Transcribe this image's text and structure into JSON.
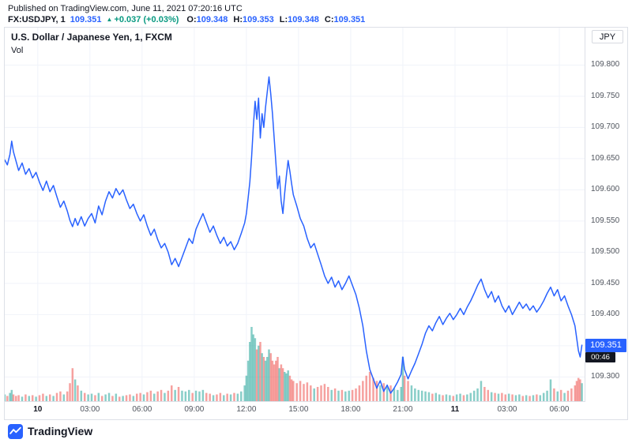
{
  "meta": {
    "published_line": "Published on TradingView.com, June 11, 2021 07:20:16 UTC"
  },
  "symbol_bar": {
    "symbol": "FX:USDJPY, 1",
    "last_price": "109.351",
    "change_arrow": "▲",
    "change_text": "+0.037 (+0.03%)",
    "ohlc": [
      {
        "label": "O:",
        "value": "109.348"
      },
      {
        "label": "H:",
        "value": "109.353"
      },
      {
        "label": "L:",
        "value": "109.348"
      },
      {
        "label": "C:",
        "value": "109.351"
      }
    ]
  },
  "chart": {
    "legend_title": "U.S. Dollar / Japanese Yen, 1, FXCM",
    "legend_vol": "Vol",
    "currency_button": "JPY",
    "price_badge": "109.351",
    "countdown": "00:46",
    "colors": {
      "line": "#2962ff",
      "up": "#089981",
      "down": "#f23645",
      "vol_up": "#26a69a",
      "vol_down": "#ef5350",
      "grid": "#f0f3fa",
      "badge_bg": "#2962ff",
      "countdown_bg": "#131722",
      "axis_text": "#50555e"
    }
  },
  "chart_data": {
    "type": "line",
    "title": "U.S. Dollar / Japanese Yen, 1, FXCM",
    "symbol": "FX:USDJPY",
    "interval": "1",
    "exchange": "FXCM",
    "ylabel": "JPY",
    "grid": true,
    "legend_position": "top-left",
    "x_unit_note": "hours since 2021-06-10 00:00 UTC; points are [t, price, relative_volume]",
    "xlim": [
      -1.9,
      31.5
    ],
    "ylim": [
      109.26,
      109.86
    ],
    "x_ticks": [
      {
        "t": 0,
        "label": "10",
        "major": true
      },
      {
        "t": 3,
        "label": "03:00",
        "major": false
      },
      {
        "t": 6,
        "label": "06:00",
        "major": false
      },
      {
        "t": 9,
        "label": "09:00",
        "major": false
      },
      {
        "t": 12,
        "label": "12:00",
        "major": false
      },
      {
        "t": 15,
        "label": "15:00",
        "major": false
      },
      {
        "t": 18,
        "label": "18:00",
        "major": false
      },
      {
        "t": 21,
        "label": "21:00",
        "major": false
      },
      {
        "t": 24,
        "label": "11",
        "major": true
      },
      {
        "t": 27,
        "label": "03:00",
        "major": false
      },
      {
        "t": 30,
        "label": "06:00",
        "major": false
      }
    ],
    "y_ticks": [
      {
        "value": 109.8,
        "label": "109.800"
      },
      {
        "value": 109.75,
        "label": "109.750"
      },
      {
        "value": 109.7,
        "label": "109.700"
      },
      {
        "value": 109.65,
        "label": "109.650"
      },
      {
        "value": 109.6,
        "label": "109.600"
      },
      {
        "value": 109.55,
        "label": "109.550"
      },
      {
        "value": 109.5,
        "label": "109.500"
      },
      {
        "value": 109.45,
        "label": "109.450"
      },
      {
        "value": 109.4,
        "label": "109.400"
      },
      {
        "value": 109.35,
        "label": ""
      },
      {
        "value": 109.3,
        "label": "109.300"
      }
    ],
    "series": [
      {
        "name": "USD/JPY close",
        "points": [
          [
            -1.9,
            109.648,
            0.1
          ],
          [
            -1.75,
            109.64,
            0.08
          ],
          [
            -1.6,
            109.657,
            0.12
          ],
          [
            -1.5,
            109.678,
            0.16
          ],
          [
            -1.4,
            109.661,
            0.1
          ],
          [
            -1.25,
            109.646,
            0.08
          ],
          [
            -1.1,
            109.631,
            0.09
          ],
          [
            -0.9,
            109.643,
            0.07
          ],
          [
            -0.7,
            109.625,
            0.1
          ],
          [
            -0.5,
            109.634,
            0.08
          ],
          [
            -0.3,
            109.619,
            0.09
          ],
          [
            -0.1,
            109.628,
            0.07
          ],
          [
            0.1,
            109.612,
            0.09
          ],
          [
            0.3,
            109.599,
            0.11
          ],
          [
            0.5,
            109.614,
            0.08
          ],
          [
            0.7,
            109.597,
            0.1
          ],
          [
            0.9,
            109.607,
            0.08
          ],
          [
            1.1,
            109.589,
            0.12
          ],
          [
            1.3,
            109.572,
            0.14
          ],
          [
            1.5,
            109.582,
            0.1
          ],
          [
            1.7,
            109.566,
            0.14
          ],
          [
            1.85,
            109.551,
            0.25
          ],
          [
            2.0,
            109.541,
            0.45
          ],
          [
            2.15,
            109.554,
            0.3
          ],
          [
            2.3,
            109.543,
            0.22
          ],
          [
            2.5,
            109.557,
            0.15
          ],
          [
            2.7,
            109.542,
            0.12
          ],
          [
            2.9,
            109.554,
            0.1
          ],
          [
            3.1,
            109.562,
            0.11
          ],
          [
            3.3,
            109.547,
            0.09
          ],
          [
            3.5,
            109.574,
            0.12
          ],
          [
            3.7,
            109.56,
            0.08
          ],
          [
            3.9,
            109.582,
            0.1
          ],
          [
            4.1,
            109.597,
            0.12
          ],
          [
            4.3,
            109.587,
            0.08
          ],
          [
            4.5,
            109.602,
            0.11
          ],
          [
            4.7,
            109.592,
            0.07
          ],
          [
            4.9,
            109.6,
            0.08
          ],
          [
            5.1,
            109.584,
            0.09
          ],
          [
            5.3,
            109.57,
            0.1
          ],
          [
            5.5,
            109.577,
            0.08
          ],
          [
            5.7,
            109.562,
            0.11
          ],
          [
            5.9,
            109.55,
            0.12
          ],
          [
            6.1,
            109.56,
            0.1
          ],
          [
            6.3,
            109.542,
            0.13
          ],
          [
            6.5,
            109.527,
            0.15
          ],
          [
            6.7,
            109.537,
            0.11
          ],
          [
            6.9,
            109.52,
            0.14
          ],
          [
            7.1,
            109.507,
            0.16
          ],
          [
            7.3,
            109.514,
            0.12
          ],
          [
            7.5,
            109.5,
            0.15
          ],
          [
            7.7,
            109.48,
            0.22
          ],
          [
            7.9,
            109.49,
            0.16
          ],
          [
            8.1,
            109.477,
            0.2
          ],
          [
            8.3,
            109.492,
            0.15
          ],
          [
            8.5,
            109.507,
            0.14
          ],
          [
            8.7,
            109.522,
            0.16
          ],
          [
            8.9,
            109.514,
            0.12
          ],
          [
            9.1,
            109.537,
            0.15
          ],
          [
            9.3,
            109.55,
            0.14
          ],
          [
            9.5,
            109.562,
            0.16
          ],
          [
            9.7,
            109.547,
            0.12
          ],
          [
            9.9,
            109.532,
            0.11
          ],
          [
            10.1,
            109.542,
            0.09
          ],
          [
            10.3,
            109.527,
            0.1
          ],
          [
            10.5,
            109.514,
            0.12
          ],
          [
            10.7,
            109.524,
            0.09
          ],
          [
            10.9,
            109.51,
            0.11
          ],
          [
            11.1,
            109.517,
            0.1
          ],
          [
            11.3,
            109.504,
            0.12
          ],
          [
            11.5,
            109.514,
            0.11
          ],
          [
            11.7,
            109.53,
            0.14
          ],
          [
            11.9,
            109.547,
            0.22
          ],
          [
            12.0,
            109.562,
            0.35
          ],
          [
            12.1,
            109.587,
            0.55
          ],
          [
            12.2,
            109.613,
            0.8
          ],
          [
            12.3,
            109.653,
            1.0
          ],
          [
            12.4,
            109.702,
            0.9
          ],
          [
            12.5,
            109.742,
            0.85
          ],
          [
            12.6,
            109.713,
            0.7
          ],
          [
            12.7,
            109.747,
            0.75
          ],
          [
            12.8,
            109.683,
            0.8
          ],
          [
            12.9,
            109.722,
            0.65
          ],
          [
            13.0,
            109.7,
            0.6
          ],
          [
            13.1,
            109.732,
            0.55
          ],
          [
            13.2,
            109.757,
            0.6
          ],
          [
            13.3,
            109.781,
            0.7
          ],
          [
            13.4,
            109.754,
            0.65
          ],
          [
            13.5,
            109.722,
            0.55
          ],
          [
            13.6,
            109.682,
            0.5
          ],
          [
            13.7,
            109.642,
            0.55
          ],
          [
            13.8,
            109.602,
            0.6
          ],
          [
            13.9,
            109.622,
            0.45
          ],
          [
            14.0,
            109.582,
            0.5
          ],
          [
            14.1,
            109.562,
            0.45
          ],
          [
            14.2,
            109.594,
            0.4
          ],
          [
            14.3,
            109.622,
            0.38
          ],
          [
            14.4,
            109.647,
            0.42
          ],
          [
            14.5,
            109.63,
            0.35
          ],
          [
            14.6,
            109.61,
            0.3
          ],
          [
            14.7,
            109.592,
            0.28
          ],
          [
            14.9,
            109.574,
            0.25
          ],
          [
            15.1,
            109.554,
            0.28
          ],
          [
            15.3,
            109.542,
            0.24
          ],
          [
            15.5,
            109.522,
            0.26
          ],
          [
            15.7,
            109.507,
            0.22
          ],
          [
            15.9,
            109.514,
            0.18
          ],
          [
            16.1,
            109.497,
            0.2
          ],
          [
            16.3,
            109.48,
            0.22
          ],
          [
            16.5,
            109.462,
            0.24
          ],
          [
            16.7,
            109.45,
            0.2
          ],
          [
            16.9,
            109.46,
            0.16
          ],
          [
            17.1,
            109.444,
            0.18
          ],
          [
            17.3,
            109.454,
            0.15
          ],
          [
            17.5,
            109.44,
            0.16
          ],
          [
            17.7,
            109.45,
            0.14
          ],
          [
            17.9,
            109.462,
            0.15
          ],
          [
            18.1,
            109.447,
            0.16
          ],
          [
            18.3,
            109.432,
            0.18
          ],
          [
            18.5,
            109.41,
            0.22
          ],
          [
            18.7,
            109.382,
            0.28
          ],
          [
            18.9,
            109.342,
            0.35
          ],
          [
            19.1,
            109.312,
            0.4
          ],
          [
            19.3,
            109.297,
            0.32
          ],
          [
            19.5,
            109.282,
            0.28
          ],
          [
            19.7,
            109.294,
            0.22
          ],
          [
            19.9,
            109.277,
            0.25
          ],
          [
            20.1,
            109.287,
            0.2
          ],
          [
            20.3,
            109.274,
            0.22
          ],
          [
            20.5,
            109.282,
            0.18
          ],
          [
            20.7,
            109.292,
            0.16
          ],
          [
            20.9,
            109.304,
            0.2
          ],
          [
            21.0,
            109.332,
            0.6
          ],
          [
            21.1,
            109.312,
            0.35
          ],
          [
            21.3,
            109.297,
            0.28
          ],
          [
            21.5,
            109.31,
            0.22
          ],
          [
            21.7,
            109.322,
            0.18
          ],
          [
            21.9,
            109.337,
            0.16
          ],
          [
            22.1,
            109.352,
            0.15
          ],
          [
            22.3,
            109.37,
            0.14
          ],
          [
            22.5,
            109.382,
            0.13
          ],
          [
            22.7,
            109.374,
            0.11
          ],
          [
            22.9,
            109.387,
            0.12
          ],
          [
            23.1,
            109.397,
            0.1
          ],
          [
            23.3,
            109.384,
            0.09
          ],
          [
            23.5,
            109.394,
            0.1
          ],
          [
            23.7,
            109.402,
            0.09
          ],
          [
            23.9,
            109.392,
            0.08
          ],
          [
            24.1,
            109.4,
            0.1
          ],
          [
            24.3,
            109.41,
            0.11
          ],
          [
            24.5,
            109.4,
            0.09
          ],
          [
            24.7,
            109.412,
            0.1
          ],
          [
            24.9,
            109.422,
            0.12
          ],
          [
            25.1,
            109.434,
            0.15
          ],
          [
            25.3,
            109.447,
            0.18
          ],
          [
            25.5,
            109.457,
            0.28
          ],
          [
            25.7,
            109.44,
            0.2
          ],
          [
            25.9,
            109.427,
            0.16
          ],
          [
            26.1,
            109.437,
            0.13
          ],
          [
            26.3,
            109.42,
            0.12
          ],
          [
            26.5,
            109.43,
            0.11
          ],
          [
            26.7,
            109.414,
            0.12
          ],
          [
            26.9,
            109.404,
            0.1
          ],
          [
            27.1,
            109.414,
            0.11
          ],
          [
            27.3,
            109.4,
            0.1
          ],
          [
            27.5,
            109.41,
            0.09
          ],
          [
            27.7,
            109.42,
            0.1
          ],
          [
            27.9,
            109.41,
            0.08
          ],
          [
            28.1,
            109.417,
            0.09
          ],
          [
            28.3,
            109.407,
            0.08
          ],
          [
            28.5,
            109.414,
            0.09
          ],
          [
            28.7,
            109.404,
            0.1
          ],
          [
            28.9,
            109.412,
            0.09
          ],
          [
            29.1,
            109.422,
            0.12
          ],
          [
            29.3,
            109.434,
            0.15
          ],
          [
            29.5,
            109.444,
            0.3
          ],
          [
            29.7,
            109.43,
            0.18
          ],
          [
            29.9,
            109.44,
            0.14
          ],
          [
            30.1,
            109.422,
            0.16
          ],
          [
            30.3,
            109.43,
            0.12
          ],
          [
            30.5,
            109.414,
            0.15
          ],
          [
            30.7,
            109.4,
            0.18
          ],
          [
            30.9,
            109.382,
            0.22
          ],
          [
            31.0,
            109.362,
            0.28
          ],
          [
            31.1,
            109.342,
            0.32
          ],
          [
            31.2,
            109.332,
            0.3
          ],
          [
            31.3,
            109.351,
            0.25
          ]
        ]
      }
    ]
  },
  "footer": {
    "brand": "TradingView"
  }
}
